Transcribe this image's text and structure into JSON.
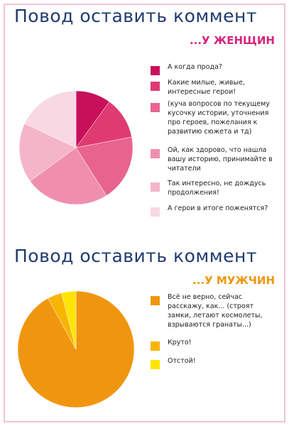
{
  "chart_data": [
    {
      "type": "pie",
      "title": "Повод оставить коммент",
      "subtitle": "...У ЖЕНЩИН",
      "categories": [
        "А когда прода?",
        "Какие милые, живые, интересные герои!",
        "(куча вопросов по текущему кусочку истории, уточнения про героев, пожелания к развитию сюжета и тд)",
        "Ой, как здорово, что нашла вашу историю, принимайте в читатели",
        "Так интересно, не дождусь продолжения!",
        "А герои в итоге поженятся?"
      ],
      "values": [
        10,
        12,
        19,
        24,
        17,
        18
      ],
      "colors": [
        "#c8105a",
        "#e03a72",
        "#e8648f",
        "#f08fad",
        "#f5b5c9",
        "#f8d8e2"
      ]
    },
    {
      "type": "pie",
      "title": "Повод оставить коммент",
      "subtitle": "...У МУЖЧИН",
      "categories": [
        "Всё не верно, сейчас расскажу, как... (строят замки, летают космолеты, взрываются гранаты...)",
        "Круто!",
        "Отстой!"
      ],
      "values": [
        92,
        4,
        4
      ],
      "colors": [
        "#f0960e",
        "#f7b500",
        "#ffe400"
      ]
    }
  ]
}
